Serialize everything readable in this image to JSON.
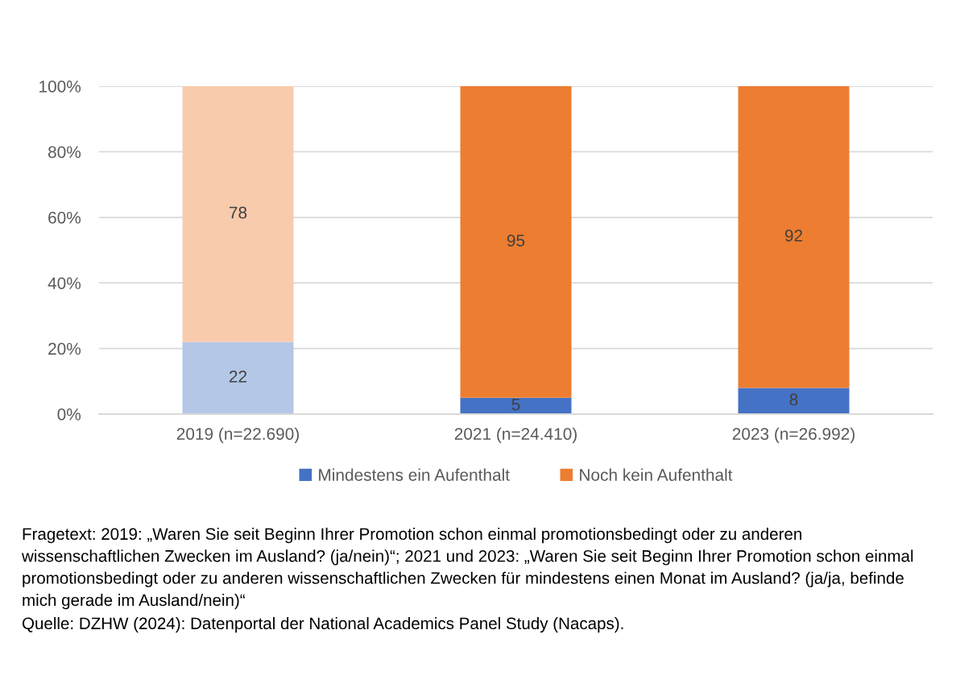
{
  "chart_data": {
    "type": "bar",
    "stacked": true,
    "categories": [
      "2019 (n=22.690)",
      "2021 (n=24.410)",
      "2023 (n=26.992)"
    ],
    "series": [
      {
        "name": "Mindestens ein Aufenthalt",
        "color": "#4472c4",
        "colors": [
          "#b4c7e7",
          "#4472c4",
          "#4472c4"
        ],
        "values": [
          22,
          5,
          8
        ]
      },
      {
        "name": "Noch kein Aufenthalt",
        "color": "#ed7d31",
        "colors": [
          "#f8cbad",
          "#ed7d31",
          "#ed7d31"
        ],
        "values": [
          78,
          95,
          92
        ]
      }
    ],
    "ylim": [
      0,
      100
    ],
    "yticks": [
      {
        "value": 0,
        "label": "0%"
      },
      {
        "value": 20,
        "label": "20%"
      },
      {
        "value": 40,
        "label": "40%"
      },
      {
        "value": 60,
        "label": "60%"
      },
      {
        "value": 80,
        "label": "80%"
      },
      {
        "value": 100,
        "label": "100%"
      }
    ],
    "grid": "y",
    "legend": "bottom",
    "data_labels": true,
    "annotations": [
      "Fragetext: 2019: „Waren Sie seit Beginn Ihrer Promotion schon einmal promotionsbedingt oder zu anderen wissenschaftlichen Zwecken im Ausland? (ja/nein)“; 2021 und 2023: „Waren Sie seit Beginn Ihrer Promotion schon einmal promotionsbedingt oder zu anderen wissenschaftlichen Zwecken für mindestens einen Monat im Ausland? (ja/ja, befinde mich gerade im Ausland/nein)“",
      "Quelle: DZHW (2024): Datenportal der National Academics Panel Study (Nacaps)."
    ]
  }
}
